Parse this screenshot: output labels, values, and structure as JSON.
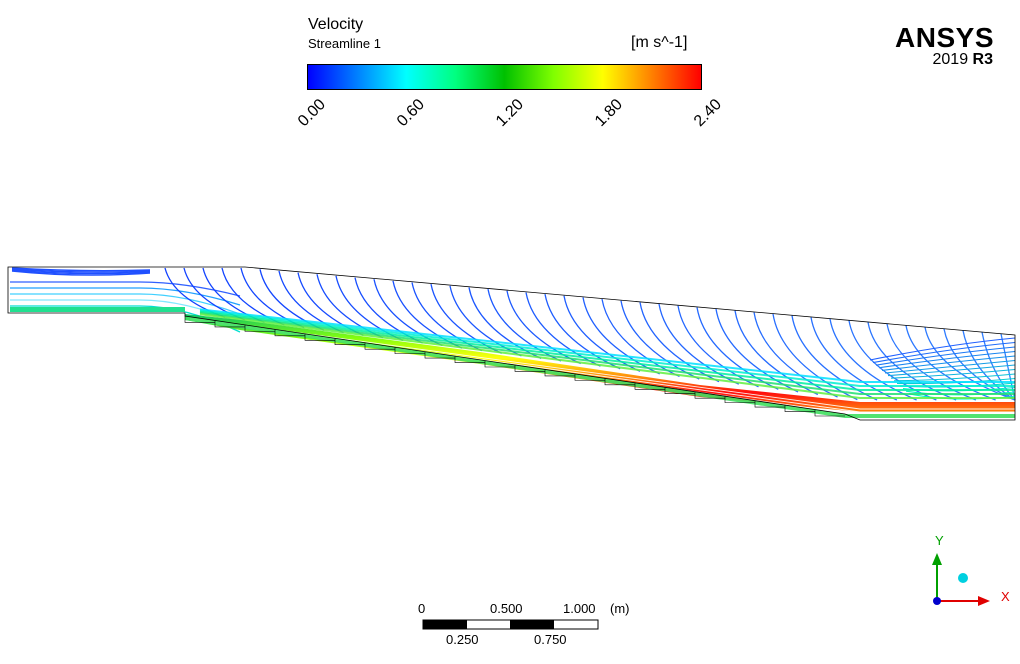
{
  "legend": {
    "title": "Velocity",
    "subtitle": "Streamline 1",
    "unit": "[m s^-1]",
    "ticks": [
      "0.00",
      "0.60",
      "1.20",
      "1.80",
      "2.40"
    ],
    "colormap": [
      "#0000ff",
      "#0080ff",
      "#00ffff",
      "#00ff80",
      "#00c000",
      "#80ff00",
      "#ffff00",
      "#ff8000",
      "#ff0000"
    ]
  },
  "logo": {
    "brand": "ANSYS",
    "year": "2019",
    "release": "R3"
  },
  "scale": {
    "top_labels": [
      "0",
      "0.500",
      "1.000"
    ],
    "unit": "(m)",
    "bottom_labels": [
      "0.250",
      "0.750"
    ]
  },
  "axes": {
    "y": "Y",
    "x": "X"
  }
}
